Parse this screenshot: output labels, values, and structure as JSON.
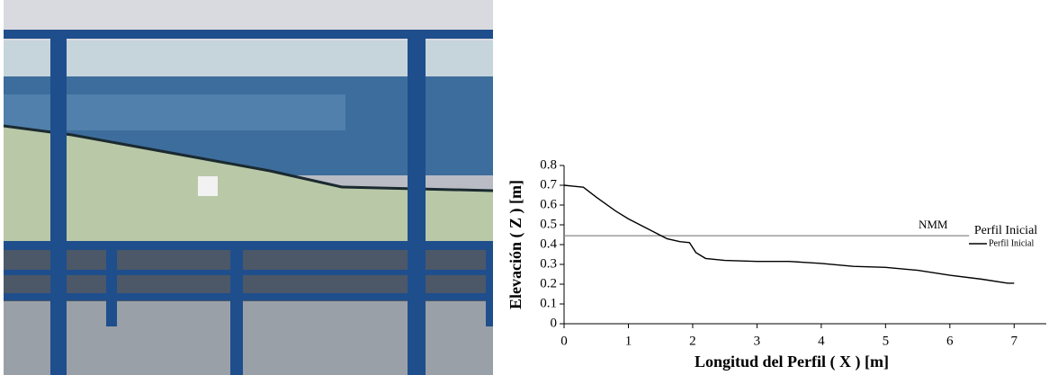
{
  "chart_data": {
    "type": "line",
    "x_label": "Longitud del Perfil ( X ) [m]",
    "y_label": "Elevación ( Z ) [m]",
    "x": [
      0,
      0.3,
      0.5,
      0.8,
      1.0,
      1.3,
      1.6,
      1.8,
      1.95,
      2.05,
      2.2,
      2.5,
      3,
      3.5,
      4,
      4.5,
      5,
      5.5,
      6,
      6.5,
      6.9,
      7
    ],
    "series": [
      {
        "name": "Perfil Inicial",
        "color": "#000000",
        "values": [
          0.7,
          0.69,
          0.64,
          0.57,
          0.53,
          0.48,
          0.43,
          0.415,
          0.41,
          0.36,
          0.33,
          0.32,
          0.315,
          0.315,
          0.305,
          0.29,
          0.285,
          0.27,
          0.245,
          0.225,
          0.205,
          0.205
        ]
      }
    ],
    "legend_title": "Perfil Inicial",
    "reference_line": {
      "label": "NMM",
      "y": 0.445,
      "x": [
        0,
        6.3
      ],
      "color": "#888888"
    },
    "xlim": [
      0,
      7.5
    ],
    "xticks": [
      0,
      1,
      2,
      3,
      4,
      5,
      6,
      7
    ],
    "ylim": [
      0,
      0.8
    ],
    "yticks": [
      0,
      0.1,
      0.2,
      0.3,
      0.4,
      0.5,
      0.6,
      0.7,
      0.8
    ]
  }
}
